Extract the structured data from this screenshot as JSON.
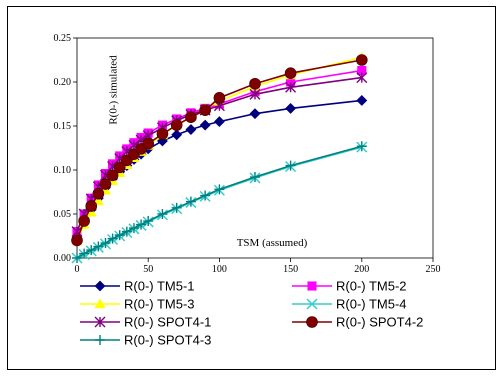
{
  "chart_data": {
    "type": "line",
    "title": "",
    "xlabel": "TSM (assumed)",
    "ylabel": "R(0-) simulated",
    "xlim": [
      0,
      250
    ],
    "ylim": [
      0,
      0.25
    ],
    "xticks": [
      0,
      50,
      100,
      150,
      200,
      250
    ],
    "xtick_labels": [
      "0",
      "50",
      "100",
      "150",
      "200",
      "250"
    ],
    "yticks": [
      0,
      0.05,
      0.1,
      0.15,
      0.2,
      0.25
    ],
    "ytick_labels": [
      "0.00",
      "0.05",
      "0.10",
      "0.15",
      "0.20",
      "0.25"
    ],
    "grid": false,
    "legend_position": "bottom",
    "series": [
      {
        "name": "R(0-) TM5-1",
        "color": "#00007F",
        "marker": "diamond",
        "x": [
          0,
          5,
          10,
          15,
          20,
          25,
          30,
          35,
          40,
          45,
          50,
          60,
          70,
          80,
          90,
          100,
          125,
          150,
          200
        ],
        "y": [
          0.02,
          0.04,
          0.055,
          0.068,
          0.08,
          0.09,
          0.098,
          0.105,
          0.112,
          0.118,
          0.124,
          0.133,
          0.14,
          0.146,
          0.151,
          0.155,
          0.164,
          0.17,
          0.179
        ]
      },
      {
        "name": "R(0-) TM5-2",
        "color": "#FF00FF",
        "marker": "square",
        "x": [
          0,
          5,
          10,
          15,
          20,
          25,
          30,
          35,
          40,
          45,
          50,
          60,
          70,
          80,
          90,
          100,
          125,
          150,
          200
        ],
        "y": [
          0.03,
          0.05,
          0.068,
          0.083,
          0.096,
          0.107,
          0.116,
          0.124,
          0.131,
          0.137,
          0.142,
          0.151,
          0.158,
          0.165,
          0.17,
          0.175,
          0.189,
          0.2,
          0.213
        ]
      },
      {
        "name": "R(0-) TM5-3",
        "color": "#FFFF00",
        "marker": "triangle",
        "x": [
          0,
          5,
          10,
          15,
          20,
          25,
          30,
          35,
          40,
          45,
          50,
          60,
          70,
          80,
          90,
          100,
          125,
          150,
          200
        ],
        "y": [
          0.02,
          0.038,
          0.052,
          0.065,
          0.077,
          0.088,
          0.097,
          0.106,
          0.114,
          0.121,
          0.128,
          0.14,
          0.151,
          0.161,
          0.17,
          0.178,
          0.195,
          0.208,
          0.228
        ]
      },
      {
        "name": "R(0-) TM5-4",
        "color": "#33CCCC",
        "marker": "x",
        "x": [
          0,
          5,
          10,
          15,
          20,
          25,
          30,
          35,
          40,
          45,
          50,
          60,
          70,
          80,
          90,
          100,
          125,
          150,
          200
        ],
        "y": [
          0.0,
          0.004,
          0.008,
          0.012,
          0.016,
          0.021,
          0.025,
          0.029,
          0.033,
          0.037,
          0.041,
          0.049,
          0.056,
          0.063,
          0.07,
          0.077,
          0.091,
          0.104,
          0.126
        ]
      },
      {
        "name": "R(0-) SPOT4-1",
        "color": "#800080",
        "marker": "star",
        "x": [
          0,
          5,
          10,
          15,
          20,
          25,
          30,
          35,
          40,
          45,
          50,
          60,
          70,
          80,
          90,
          100,
          125,
          150,
          200
        ],
        "y": [
          0.03,
          0.05,
          0.067,
          0.081,
          0.094,
          0.104,
          0.113,
          0.121,
          0.128,
          0.134,
          0.139,
          0.148,
          0.156,
          0.163,
          0.168,
          0.173,
          0.186,
          0.194,
          0.205
        ]
      },
      {
        "name": "R(0-) SPOT4-2",
        "color": "#800000",
        "marker": "circle",
        "x": [
          0,
          5,
          10,
          15,
          20,
          25,
          30,
          35,
          40,
          45,
          50,
          60,
          70,
          80,
          90,
          100,
          125,
          150,
          200
        ],
        "y": [
          0.02,
          0.042,
          0.059,
          0.073,
          0.084,
          0.094,
          0.103,
          0.111,
          0.118,
          0.124,
          0.13,
          0.141,
          0.151,
          0.16,
          0.168,
          0.182,
          0.198,
          0.21,
          0.225
        ]
      },
      {
        "name": "R(0-) SPOT4-3",
        "color": "#008080",
        "marker": "plus",
        "x": [
          0,
          5,
          10,
          15,
          20,
          25,
          30,
          35,
          40,
          45,
          50,
          60,
          70,
          80,
          90,
          100,
          125,
          150,
          200
        ],
        "y": [
          0.0,
          0.005,
          0.009,
          0.013,
          0.017,
          0.022,
          0.026,
          0.03,
          0.034,
          0.038,
          0.042,
          0.05,
          0.057,
          0.064,
          0.071,
          0.078,
          0.092,
          0.105,
          0.127
        ]
      }
    ]
  }
}
